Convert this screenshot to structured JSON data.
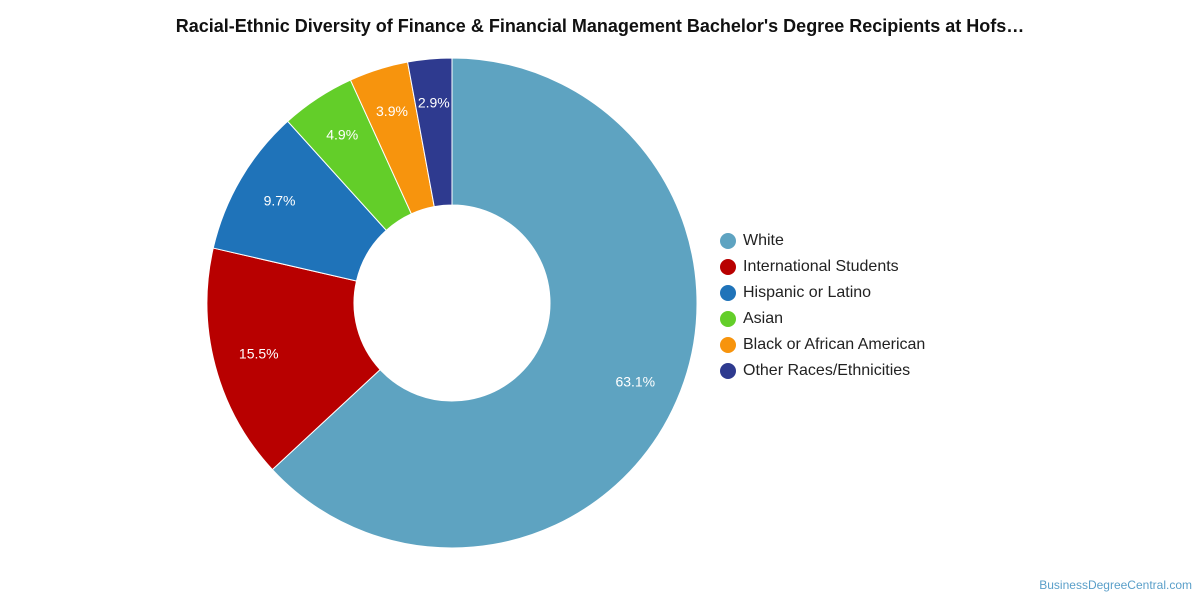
{
  "chart_data": {
    "type": "pie",
    "title": "Racial-Ethnic Diversity of Finance & Financial Management Bachelor's Degree Recipients at Hofs…",
    "categories": [
      "White",
      "International Students",
      "Hispanic or Latino",
      "Asian",
      "Black or African American",
      "Other Races/Ethnicities"
    ],
    "values": [
      63.1,
      15.5,
      9.7,
      4.9,
      3.9,
      2.9
    ],
    "labels": [
      "63.1%",
      "15.5%",
      "9.7%",
      "4.9%",
      "3.9%",
      "2.9%"
    ],
    "colors": [
      "#5ea3c1",
      "#b80000",
      "#1f73b9",
      "#63ce29",
      "#f7940d",
      "#2e3a8f"
    ],
    "donut": true,
    "legend_position": "right",
    "value_unit": "percent"
  },
  "watermark": "BusinessDegreeCentral.com"
}
